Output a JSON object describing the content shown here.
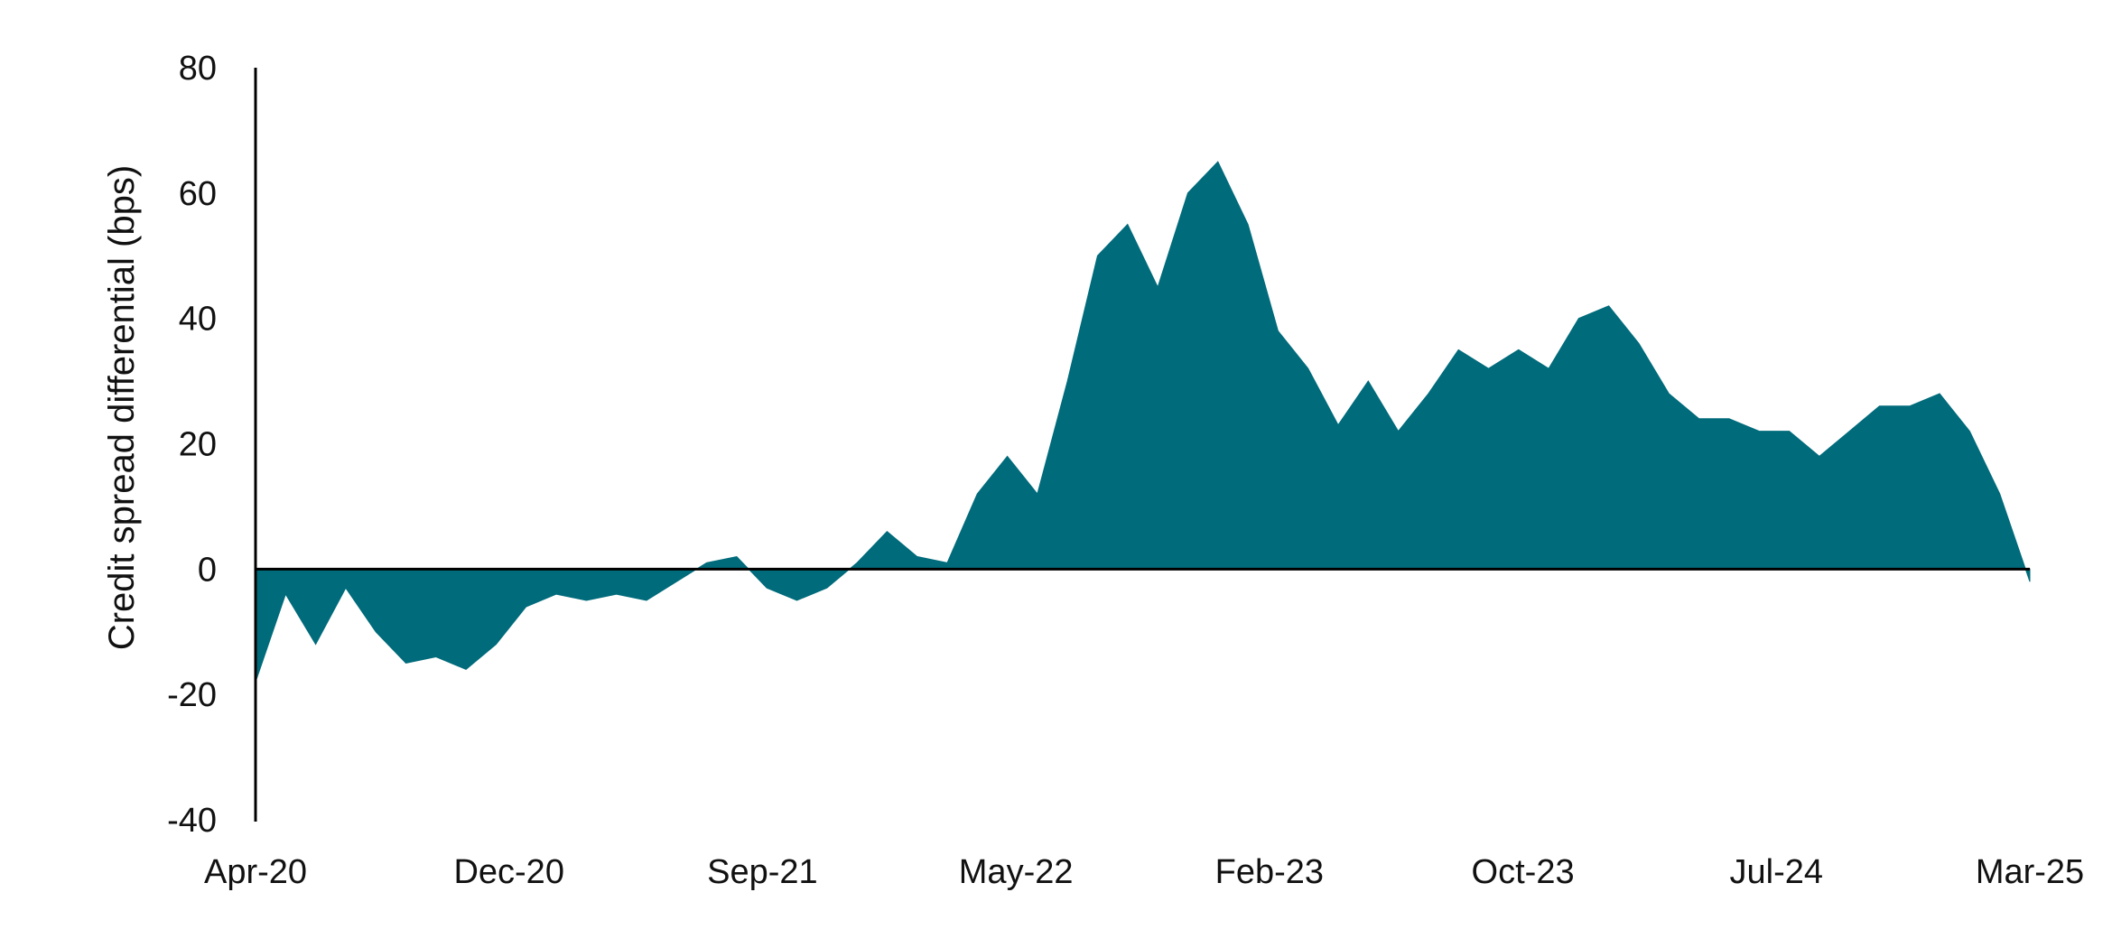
{
  "chart_data": {
    "type": "area",
    "title": "",
    "xlabel": "",
    "ylabel": "Credit spread differential (bps)",
    "ylim": [
      -40,
      80
    ],
    "yticks": [
      80,
      60,
      40,
      20,
      0,
      -20,
      -40
    ],
    "xticks": [
      "Apr-20",
      "Dec-20",
      "Sep-21",
      "May-22",
      "Feb-23",
      "Oct-23",
      "Jul-24",
      "Mar-25"
    ],
    "xlim": [
      "2020-04",
      "2025-03"
    ],
    "grid": false,
    "color": "#006b7b",
    "x": [
      "2020-04",
      "2020-05",
      "2020-06",
      "2020-07",
      "2020-08",
      "2020-09",
      "2020-10",
      "2020-11",
      "2020-12",
      "2021-01",
      "2021-02",
      "2021-03",
      "2021-04",
      "2021-05",
      "2021-06",
      "2021-07",
      "2021-08",
      "2021-09",
      "2021-10",
      "2021-11",
      "2021-12",
      "2022-01",
      "2022-02",
      "2022-03",
      "2022-04",
      "2022-05",
      "2022-06",
      "2022-07",
      "2022-08",
      "2022-09",
      "2022-10",
      "2022-11",
      "2022-12",
      "2023-01",
      "2023-02",
      "2023-03",
      "2023-04",
      "2023-05",
      "2023-06",
      "2023-07",
      "2023-08",
      "2023-09",
      "2023-10",
      "2023-11",
      "2023-12",
      "2024-01",
      "2024-02",
      "2024-03",
      "2024-04",
      "2024-05",
      "2024-06",
      "2024-07",
      "2024-08",
      "2024-09",
      "2024-10",
      "2024-11",
      "2024-12",
      "2025-01",
      "2025-02",
      "2025-03"
    ],
    "values": [
      -18,
      -4,
      -12,
      -3,
      -10,
      -15,
      -14,
      -16,
      -12,
      -6,
      -4,
      -5,
      -4,
      -5,
      -2,
      1,
      2,
      -3,
      -5,
      -3,
      1,
      6,
      2,
      1,
      12,
      18,
      12,
      30,
      50,
      55,
      45,
      60,
      65,
      55,
      38,
      32,
      23,
      30,
      22,
      28,
      35,
      32,
      35,
      32,
      40,
      42,
      36,
      28,
      24,
      24,
      22,
      22,
      18,
      22,
      26,
      26,
      28,
      22,
      12,
      -2
    ]
  }
}
